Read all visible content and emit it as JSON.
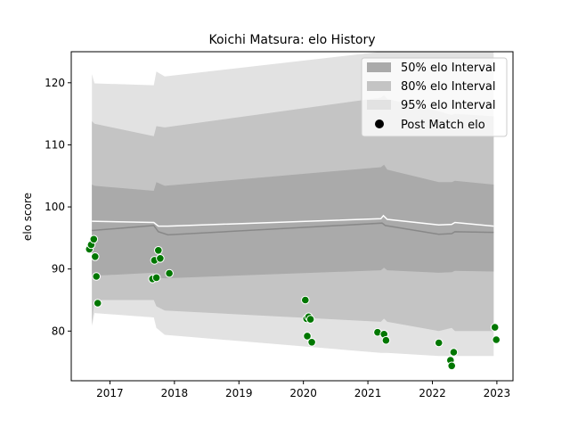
{
  "chart_data": {
    "type": "line",
    "title": "Koichi Matsura: elo History",
    "xlabel": "",
    "ylabel": "elo score",
    "xlim": [
      2016.4,
      2023.25
    ],
    "ylim": [
      72,
      125
    ],
    "xticks": [
      2017,
      2018,
      2019,
      2020,
      2021,
      2022,
      2023
    ],
    "yticks": [
      80,
      90,
      100,
      110,
      120
    ],
    "legend_position": "top-right",
    "legend": {
      "band50": "50% elo Interval",
      "band80": "80% elo Interval",
      "band95": "95% elo Interval",
      "points": "Post Match elo"
    },
    "colors": {
      "band50": "#aaaaaa",
      "band80": "#c4c4c4",
      "band95": "#e2e2e2",
      "median": "#888888",
      "mean": "#ffffff",
      "points": "#007700"
    },
    "bands": {
      "x": [
        2016.72,
        2016.76,
        2017.68,
        2017.72,
        2017.85,
        2021.2,
        2021.25,
        2021.3,
        2022.1,
        2022.3,
        2022.35,
        2022.95
      ],
      "p95_hi": [
        121.4,
        119.9,
        119.6,
        121.8,
        121.0,
        125.0,
        125.0,
        125.0,
        125.0,
        125.0,
        125.0,
        125.0
      ],
      "p95_lo": [
        80.8,
        82.9,
        82.2,
        80.5,
        79.4,
        76.5,
        76.5,
        76.5,
        76.0,
        76.0,
        76.0,
        76.0
      ],
      "p80_hi": [
        113.8,
        113.4,
        111.4,
        113.0,
        112.8,
        117.6,
        118.0,
        117.4,
        115.4,
        114.8,
        115.0,
        114.6
      ],
      "p80_lo": [
        81.1,
        85.0,
        85.0,
        84.0,
        83.3,
        81.5,
        82.0,
        81.5,
        80.0,
        80.5,
        80.0,
        80.0
      ],
      "p50_hi": [
        103.6,
        103.4,
        102.6,
        104.0,
        103.4,
        106.4,
        106.8,
        106.0,
        104.0,
        104.0,
        104.2,
        103.6
      ],
      "p50_lo": [
        88.7,
        88.9,
        89.4,
        88.6,
        88.5,
        89.8,
        90.2,
        89.8,
        89.4,
        89.5,
        89.7,
        89.6
      ]
    },
    "median": {
      "x": [
        2016.72,
        2017.68,
        2017.75,
        2017.9,
        2021.22,
        2021.27,
        2022.1,
        2022.3,
        2022.35,
        2022.95
      ],
      "y": [
        96.2,
        97.0,
        96.0,
        95.5,
        97.4,
        97.0,
        95.6,
        95.7,
        96.0,
        95.9
      ]
    },
    "mean": {
      "x": [
        2016.72,
        2017.68,
        2017.75,
        2017.9,
        2021.2,
        2021.24,
        2021.3,
        2022.1,
        2022.3,
        2022.35,
        2022.95
      ],
      "y": [
        97.7,
        97.5,
        96.9,
        96.9,
        98.1,
        98.6,
        98.0,
        97.1,
        97.2,
        97.5,
        96.9
      ]
    },
    "points": {
      "x": [
        2016.68,
        2016.71,
        2016.75,
        2016.77,
        2016.79,
        2016.81,
        2017.66,
        2017.69,
        2017.72,
        2017.75,
        2017.78,
        2017.92,
        2020.03,
        2020.05,
        2020.08,
        2020.11,
        2020.06,
        2020.13,
        2021.15,
        2021.25,
        2021.28,
        2022.1,
        2022.28,
        2022.3,
        2022.33,
        2022.97,
        2022.99
      ],
      "y": [
        93.2,
        93.9,
        94.8,
        92.0,
        88.8,
        84.5,
        88.4,
        91.4,
        88.6,
        93.0,
        91.7,
        89.3,
        85.0,
        82.0,
        82.3,
        81.9,
        79.2,
        78.2,
        79.8,
        79.5,
        78.5,
        78.1,
        75.3,
        74.4,
        76.6,
        80.6,
        78.6
      ]
    }
  }
}
